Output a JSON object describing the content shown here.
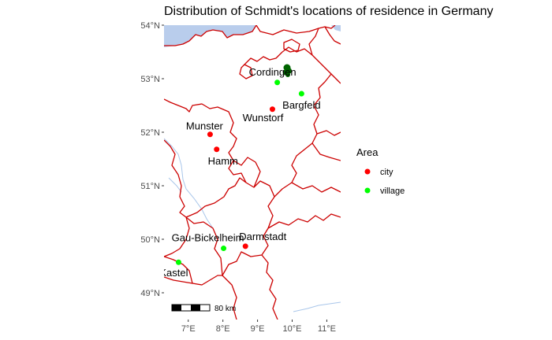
{
  "chart_data": {
    "type": "scatter",
    "title": "Distribution of Schmidt's locations of residence in Germany",
    "xlabel": "",
    "ylabel": "",
    "x_ticks": [
      "7°E",
      "8°E",
      "9°E",
      "10°E",
      "11°E"
    ],
    "y_ticks": [
      "49°N",
      "50°N",
      "51°N",
      "52°N",
      "53°N",
      "54°N"
    ],
    "xlim": [
      6.3,
      11.4
    ],
    "ylim": [
      48.5,
      54.0
    ],
    "legend": {
      "title": "Area",
      "position": "right",
      "entries": [
        {
          "label": "city",
          "color": "#ff0000"
        },
        {
          "label": "village",
          "color": "#00ff00"
        }
      ]
    },
    "points": [
      {
        "name": "Cordingen",
        "lon": 9.57,
        "lat": 52.93,
        "area": "village"
      },
      {
        "name": "Bargfeld",
        "lon": 10.27,
        "lat": 52.72,
        "area": "village"
      },
      {
        "name": "Wunstorf",
        "lon": 9.43,
        "lat": 52.43,
        "area": "city"
      },
      {
        "name": "Munster",
        "lon": 7.63,
        "lat": 51.96,
        "area": "city"
      },
      {
        "name": "Hamm",
        "lon": 7.82,
        "lat": 51.68,
        "area": "city"
      },
      {
        "name": "Darmstadt",
        "lon": 8.65,
        "lat": 49.87,
        "area": "city"
      },
      {
        "name": "Gau-Bickelheim",
        "lon": 8.02,
        "lat": 49.83,
        "area": "village"
      },
      {
        "name": "Kastel",
        "lon": 6.72,
        "lat": 49.57,
        "area": "village"
      }
    ],
    "scale_bar": "80 km",
    "colors": {
      "city": "#ff0000",
      "village": "#00ff00",
      "borders": "#cc0000",
      "water": "#b9cdec",
      "rivers": "#a9c6ea",
      "panel_background": "#ffffff",
      "dark_marker": "#006400"
    }
  }
}
